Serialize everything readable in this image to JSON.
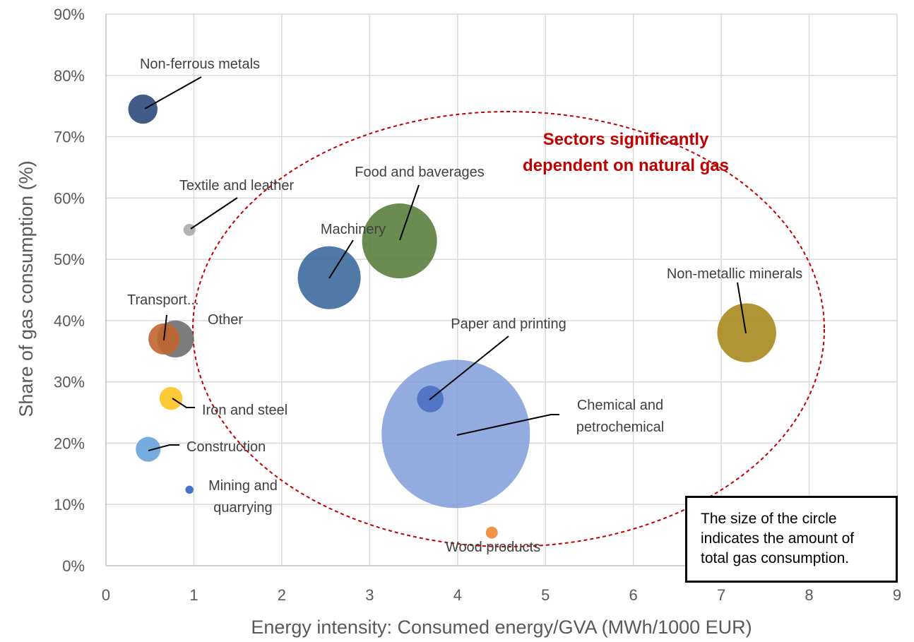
{
  "chart_data": {
    "type": "bubble",
    "xlabel": "Energy intensity: Consumed energy/GVA (MWh/1000 EUR)",
    "ylabel": "Share of gas consumption (%)",
    "xlim": [
      0,
      9
    ],
    "ylim": [
      0,
      90
    ],
    "xticks": [
      "0",
      "1",
      "2",
      "3",
      "4",
      "5",
      "6",
      "7",
      "8",
      "9"
    ],
    "yticks": [
      "0%",
      "10%",
      "20%",
      "30%",
      "40%",
      "50%",
      "60%",
      "70%",
      "80%",
      "90%"
    ],
    "grid": true,
    "callout": {
      "lines": [
        "Sectors significantly",
        "dependent on natural gas"
      ],
      "color": "#c00000"
    },
    "note": {
      "lines": [
        "The size of the circle",
        "indicates the amount of",
        "total gas consumption."
      ]
    },
    "series": [
      {
        "name": "Chemical and petrochemical",
        "label_lines": [
          "Chemical and",
          "petrochemical"
        ],
        "x": 3.98,
        "y": 21.5,
        "size": 1.0,
        "color": "#7f9ed9",
        "opacity": 0.85
      },
      {
        "name": "Food and baverages",
        "label_lines": [
          "Food and baverages"
        ],
        "x": 3.34,
        "y": 53.0,
        "size": 0.255,
        "color": "#5a7f3e",
        "opacity": 0.9
      },
      {
        "name": "Machinery",
        "label_lines": [
          "Machinery"
        ],
        "x": 2.54,
        "y": 47.0,
        "size": 0.18,
        "color": "#3d6a9e",
        "opacity": 0.9
      },
      {
        "name": "Non-metallic minerals",
        "label_lines": [
          "Non-metallic minerals"
        ],
        "x": 7.29,
        "y": 38.0,
        "size": 0.158,
        "color": "#a98a1f",
        "opacity": 0.9
      },
      {
        "name": "Other",
        "label_lines": [
          "Other"
        ],
        "x": 0.79,
        "y": 37.0,
        "size": 0.062,
        "color": "#6e6e6e",
        "opacity": 0.9
      },
      {
        "name": "Transport...",
        "label_lines": [
          "Transport..."
        ],
        "x": 0.66,
        "y": 37.0,
        "size": 0.044,
        "color": "#c0662d",
        "opacity": 0.9
      },
      {
        "name": "Non-ferrous metals",
        "label_lines": [
          "Non-ferrous metals"
        ],
        "x": 0.42,
        "y": 74.5,
        "size": 0.039,
        "color": "#2e4a7d",
        "opacity": 0.9
      },
      {
        "name": "Paper and printing",
        "label_lines": [
          "Paper and printing"
        ],
        "x": 3.69,
        "y": 27.2,
        "size": 0.032,
        "color": "#4f73c4",
        "opacity": 0.95
      },
      {
        "name": "Construction",
        "label_lines": [
          "Construction"
        ],
        "x": 0.48,
        "y": 19.0,
        "size": 0.028,
        "color": "#6fa7dc",
        "opacity": 0.95
      },
      {
        "name": "Iron and steel",
        "label_lines": [
          "Iron and steel"
        ],
        "x": 0.74,
        "y": 27.3,
        "size": 0.024,
        "color": "#ffc72c",
        "opacity": 0.95
      },
      {
        "name": "Textile and leather",
        "label_lines": [
          "Textile and leather"
        ],
        "x": 0.95,
        "y": 54.8,
        "size": 0.0065,
        "color": "#b3b3b3",
        "opacity": 1.0
      },
      {
        "name": "Wood products",
        "label_lines": [
          "Wood products"
        ],
        "x": 4.39,
        "y": 5.4,
        "size": 0.0065,
        "color": "#f0944a",
        "opacity": 1.0
      },
      {
        "name": "Mining and quarrying",
        "label_lines": [
          "Mining and",
          "quarrying"
        ],
        "x": 0.95,
        "y": 12.4,
        "size": 0.003,
        "color": "#4a72c4",
        "opacity": 1.0
      }
    ]
  }
}
